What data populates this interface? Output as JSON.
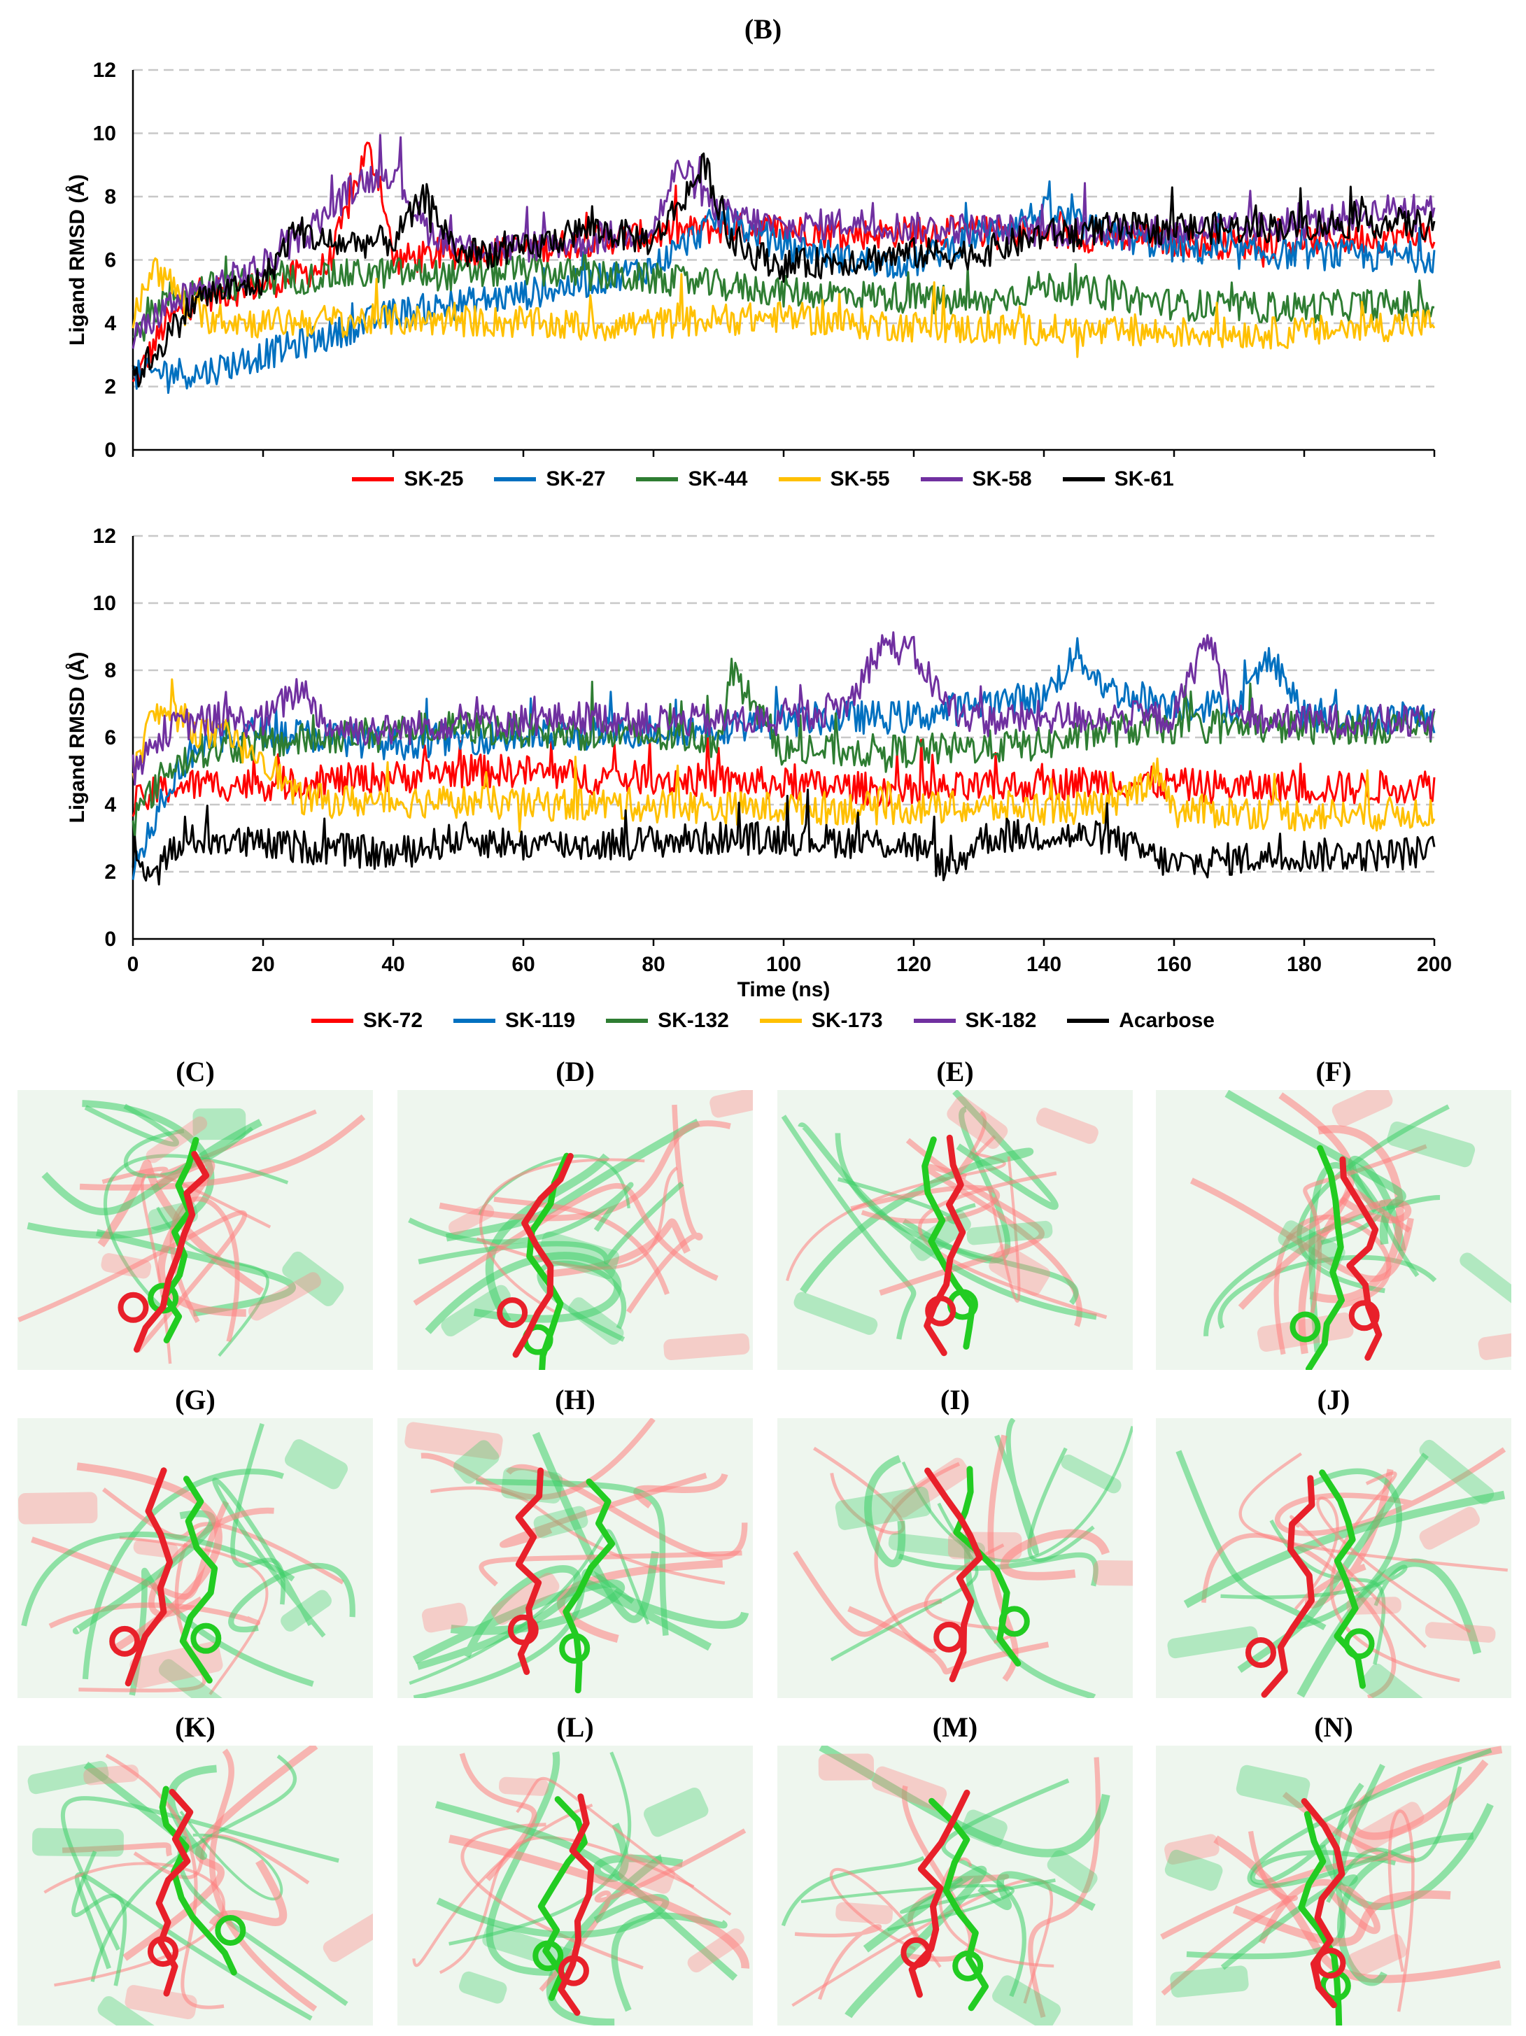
{
  "figure": {
    "panel_b_label": "(B)",
    "pose_panels": [
      {
        "label": "(C)"
      },
      {
        "label": "(D)"
      },
      {
        "label": "(E)"
      },
      {
        "label": "(F)"
      },
      {
        "label": "(G)"
      },
      {
        "label": "(H)"
      },
      {
        "label": "(I)"
      },
      {
        "label": "(J)"
      },
      {
        "label": "(K)"
      },
      {
        "label": "(L)"
      },
      {
        "label": "(M)"
      },
      {
        "label": "(N)"
      }
    ],
    "pose_colors": {
      "reference": "#e8202a",
      "final": "#22cc22",
      "protein_a": "#ff8080",
      "protein_b": "#3fcf6a"
    }
  },
  "chart_data": [
    {
      "type": "line",
      "title": "",
      "xlabel": "",
      "ylabel": "Ligand RMSD (Å)",
      "xlim": [
        0,
        200
      ],
      "ylim": [
        0,
        12
      ],
      "yticks": [
        "0",
        "2",
        "4",
        "6",
        "8",
        "10",
        "12"
      ],
      "xticks": [],
      "grid": "horizontal dashed",
      "series": [
        {
          "name": "SK-25",
          "color": "#ff0000",
          "x": [
            0,
            5,
            10,
            20,
            30,
            36,
            38,
            40,
            50,
            60,
            70,
            80,
            90,
            100,
            110,
            120,
            130,
            140,
            150,
            160,
            170,
            180,
            190,
            200
          ],
          "values": [
            2.0,
            4.0,
            4.8,
            5.2,
            5.8,
            9.5,
            8.5,
            6.0,
            6.2,
            6.3,
            6.6,
            6.8,
            7.0,
            7.0,
            6.8,
            6.9,
            6.9,
            6.8,
            6.7,
            6.6,
            6.5,
            6.6,
            6.7,
            6.8
          ]
        },
        {
          "name": "SK-27",
          "color": "#0070c0",
          "x": [
            0,
            5,
            10,
            20,
            30,
            40,
            50,
            60,
            70,
            80,
            90,
            100,
            110,
            120,
            130,
            140,
            150,
            160,
            170,
            180,
            190,
            200
          ],
          "values": [
            2.3,
            2.5,
            2.4,
            3.0,
            3.6,
            4.3,
            4.6,
            4.9,
            5.3,
            5.8,
            7.3,
            6.5,
            6.0,
            5.9,
            6.8,
            7.5,
            6.8,
            6.4,
            6.2,
            6.2,
            6.1,
            6.1
          ]
        },
        {
          "name": "SK-44",
          "color": "#2e7d32",
          "x": [
            0,
            5,
            10,
            20,
            30,
            40,
            50,
            60,
            70,
            80,
            90,
            100,
            110,
            120,
            130,
            140,
            150,
            160,
            170,
            180,
            190,
            200
          ],
          "values": [
            3.5,
            4.8,
            5.1,
            5.3,
            5.5,
            5.6,
            5.5,
            5.7,
            5.5,
            5.4,
            5.2,
            5.0,
            4.9,
            4.8,
            4.6,
            5.2,
            4.9,
            4.6,
            4.5,
            4.5,
            4.6,
            4.5
          ]
        },
        {
          "name": "SK-55",
          "color": "#ffc000",
          "x": [
            0,
            3,
            6,
            10,
            20,
            30,
            40,
            50,
            60,
            70,
            80,
            90,
            100,
            110,
            120,
            130,
            140,
            150,
            160,
            170,
            180,
            190,
            200
          ],
          "values": [
            4.0,
            5.8,
            5.2,
            4.2,
            4.0,
            4.1,
            4.1,
            4.1,
            4.0,
            3.9,
            4.0,
            4.1,
            4.2,
            4.0,
            3.9,
            3.8,
            3.8,
            3.7,
            3.7,
            3.7,
            3.7,
            3.9,
            4.0
          ]
        },
        {
          "name": "SK-58",
          "color": "#7030a0",
          "x": [
            0,
            5,
            10,
            20,
            30,
            35,
            40,
            45,
            50,
            60,
            70,
            80,
            84,
            90,
            100,
            110,
            120,
            130,
            140,
            150,
            160,
            170,
            180,
            190,
            200
          ],
          "values": [
            3.5,
            4.5,
            5.0,
            5.8,
            7.5,
            8.5,
            8.8,
            7.0,
            6.4,
            6.4,
            6.6,
            7.0,
            9.0,
            7.5,
            7.0,
            7.2,
            7.0,
            7.0,
            6.9,
            6.9,
            6.9,
            7.0,
            7.1,
            7.5,
            7.8
          ]
        },
        {
          "name": "SK-61",
          "color": "#000000",
          "x": [
            0,
            5,
            10,
            20,
            25,
            30,
            40,
            45,
            50,
            60,
            70,
            80,
            88,
            92,
            100,
            110,
            120,
            130,
            140,
            150,
            160,
            170,
            180,
            190,
            200
          ],
          "values": [
            2.2,
            3.5,
            4.8,
            5.3,
            7.0,
            6.5,
            6.6,
            8.0,
            6.2,
            6.3,
            7.0,
            6.6,
            9.0,
            6.5,
            5.8,
            6.0,
            6.2,
            6.2,
            6.8,
            7.0,
            7.0,
            7.0,
            7.1,
            7.2,
            7.1
          ]
        }
      ]
    },
    {
      "type": "line",
      "title": "",
      "xlabel": "Time (ns)",
      "ylabel": "Ligand RMSD (Å)",
      "xlim": [
        0,
        200
      ],
      "ylim": [
        0,
        12
      ],
      "yticks": [
        "0",
        "2",
        "4",
        "6",
        "8",
        "10",
        "12"
      ],
      "xticks": [
        "0",
        "20",
        "40",
        "60",
        "80",
        "100",
        "120",
        "140",
        "160",
        "180",
        "200"
      ],
      "grid": "horizontal dashed",
      "series": [
        {
          "name": "SK-72",
          "color": "#ff0000",
          "x": [
            0,
            5,
            10,
            20,
            30,
            40,
            50,
            60,
            70,
            80,
            90,
            100,
            110,
            120,
            130,
            140,
            150,
            160,
            170,
            180,
            190,
            200
          ],
          "values": [
            4.0,
            4.5,
            4.6,
            4.6,
            4.7,
            4.8,
            5.0,
            5.0,
            4.8,
            4.8,
            4.7,
            4.6,
            4.5,
            4.4,
            4.5,
            4.6,
            4.7,
            4.6,
            4.5,
            4.5,
            4.5,
            4.6
          ]
        },
        {
          "name": "SK-119",
          "color": "#0070c0",
          "x": [
            0,
            5,
            10,
            20,
            30,
            40,
            50,
            60,
            70,
            80,
            90,
            100,
            110,
            120,
            130,
            140,
            145,
            150,
            160,
            170,
            175,
            180,
            190,
            200
          ],
          "values": [
            2.0,
            4.5,
            5.8,
            6.2,
            6.0,
            5.8,
            6.0,
            6.0,
            6.1,
            6.2,
            6.3,
            6.5,
            6.6,
            6.6,
            7.0,
            7.2,
            8.5,
            7.4,
            7.0,
            6.9,
            8.5,
            6.6,
            6.5,
            6.6
          ]
        },
        {
          "name": "SK-132",
          "color": "#2e7d32",
          "x": [
            0,
            5,
            10,
            20,
            30,
            40,
            50,
            60,
            70,
            80,
            90,
            92,
            100,
            110,
            120,
            130,
            140,
            150,
            160,
            170,
            180,
            190,
            200
          ],
          "values": [
            3.5,
            5.0,
            5.6,
            5.8,
            6.0,
            6.2,
            6.3,
            6.2,
            6.1,
            6.0,
            6.0,
            8.0,
            5.6,
            5.6,
            5.6,
            5.7,
            5.8,
            6.2,
            6.3,
            6.3,
            6.3,
            6.3,
            6.3
          ]
        },
        {
          "name": "SK-173",
          "color": "#ffc000",
          "x": [
            0,
            3,
            6,
            10,
            20,
            25,
            30,
            40,
            50,
            60,
            70,
            80,
            90,
            100,
            110,
            120,
            130,
            140,
            150,
            158,
            160,
            170,
            180,
            190,
            200
          ],
          "values": [
            5.0,
            6.6,
            6.8,
            6.2,
            5.5,
            4.2,
            4.1,
            4.1,
            4.1,
            4.0,
            4.0,
            4.0,
            3.9,
            3.9,
            3.9,
            3.9,
            3.9,
            3.9,
            3.9,
            5.0,
            3.8,
            3.8,
            3.7,
            3.7,
            3.8
          ]
        },
        {
          "name": "SK-182",
          "color": "#7030a0",
          "x": [
            0,
            5,
            10,
            20,
            26,
            30,
            40,
            50,
            60,
            70,
            80,
            90,
            100,
            110,
            115,
            120,
            125,
            130,
            140,
            150,
            160,
            165,
            170,
            180,
            190,
            200
          ],
          "values": [
            5.0,
            6.2,
            6.5,
            6.5,
            7.5,
            6.3,
            6.2,
            6.5,
            6.5,
            6.6,
            6.5,
            6.5,
            6.5,
            7.0,
            8.8,
            8.5,
            7.0,
            6.5,
            6.6,
            6.6,
            6.6,
            9.0,
            6.5,
            6.5,
            6.5,
            6.4
          ]
        },
        {
          "name": "Acarbose",
          "color": "#000000",
          "x": [
            0,
            5,
            10,
            20,
            30,
            40,
            50,
            60,
            70,
            80,
            90,
            100,
            110,
            120,
            126,
            130,
            140,
            150,
            160,
            170,
            180,
            190,
            200
          ],
          "values": [
            2.0,
            2.5,
            3.0,
            2.8,
            2.7,
            2.5,
            3.0,
            2.8,
            2.8,
            2.9,
            3.0,
            3.0,
            2.9,
            2.8,
            2.0,
            3.0,
            3.1,
            3.0,
            2.2,
            2.4,
            2.5,
            2.5,
            2.6
          ]
        }
      ]
    }
  ]
}
